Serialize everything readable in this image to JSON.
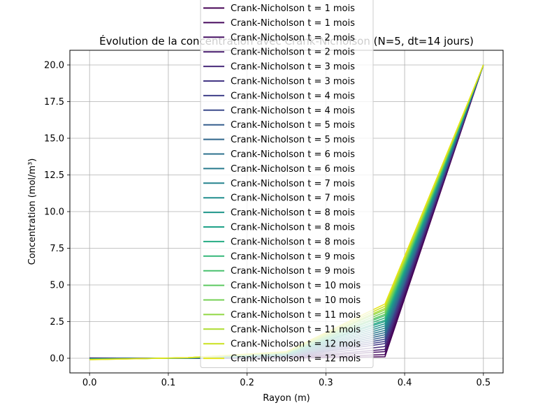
{
  "chart_data": {
    "type": "line",
    "title": "Évolution de la concentration avec Crank-Nicholson (N=5, dt=14 jours)",
    "xlabel": "Rayon (m)",
    "ylabel": "Concentration (mol/m³)",
    "xlim": [
      -0.025,
      0.525
    ],
    "ylim": [
      -1.0,
      21.0
    ],
    "xticks": [
      0.0,
      0.1,
      0.2,
      0.3,
      0.4,
      0.5
    ],
    "yticks": [
      0.0,
      2.5,
      5.0,
      7.5,
      10.0,
      12.5,
      15.0,
      17.5,
      20.0
    ],
    "xtick_labels": [
      "0.0",
      "0.1",
      "0.2",
      "0.3",
      "0.4",
      "0.5"
    ],
    "ytick_labels": [
      "0.0",
      "2.5",
      "5.0",
      "7.5",
      "10.0",
      "12.5",
      "15.0",
      "17.5",
      "20.0"
    ],
    "grid": true,
    "legend_position": "upper center (overlapping title)",
    "colormap": "viridis",
    "x": [
      0.0,
      0.125,
      0.25,
      0.375,
      0.5
    ],
    "series": [
      {
        "name": "Crank-Nicholson t = 1 mois",
        "color": "#440154",
        "values": [
          0.02,
          0.0,
          0.0,
          0.1,
          20.0
        ]
      },
      {
        "name": "Crank-Nicholson t = 1 mois",
        "color": "#46085c",
        "values": [
          0.015,
          0.0,
          0.01,
          0.25,
          20.0
        ]
      },
      {
        "name": "Crank-Nicholson t = 2 mois",
        "color": "#471164",
        "values": [
          0.01,
          0.0,
          0.02,
          0.45,
          20.0
        ]
      },
      {
        "name": "Crank-Nicholson t = 2 mois",
        "color": "#481c6e",
        "values": [
          0.005,
          0.0,
          0.03,
          0.6,
          20.0
        ]
      },
      {
        "name": "Crank-Nicholson t = 3 mois",
        "color": "#472a7a",
        "values": [
          0.0,
          0.0,
          0.05,
          0.8,
          20.0
        ]
      },
      {
        "name": "Crank-Nicholson t = 3 mois",
        "color": "#433584",
        "values": [
          -0.005,
          0.0,
          0.07,
          1.0,
          20.0
        ]
      },
      {
        "name": "Crank-Nicholson t = 4 mois",
        "color": "#3f3f89",
        "values": [
          -0.01,
          0.0,
          0.09,
          1.15,
          20.0
        ]
      },
      {
        "name": "Crank-Nicholson t = 4 mois",
        "color": "#3b4b8c",
        "values": [
          -0.015,
          0.0,
          0.11,
          1.3,
          20.0
        ]
      },
      {
        "name": "Crank-Nicholson t = 5 mois",
        "color": "#355e8d",
        "values": [
          -0.02,
          0.0,
          0.13,
          1.45,
          20.0
        ]
      },
      {
        "name": "Crank-Nicholson t = 5 mois",
        "color": "#31688e",
        "values": [
          -0.025,
          0.0,
          0.15,
          1.6,
          20.0
        ]
      },
      {
        "name": "Crank-Nicholson t = 6 mois",
        "color": "#2d708e",
        "values": [
          -0.03,
          0.01,
          0.17,
          1.75,
          20.0
        ]
      },
      {
        "name": "Crank-Nicholson t = 6 mois",
        "color": "#297a8e",
        "values": [
          -0.035,
          0.01,
          0.19,
          1.9,
          20.0
        ]
      },
      {
        "name": "Crank-Nicholson t = 7 mois",
        "color": "#25838e",
        "values": [
          -0.04,
          0.01,
          0.21,
          2.05,
          20.0
        ]
      },
      {
        "name": "Crank-Nicholson t = 7 mois",
        "color": "#218e8d",
        "values": [
          -0.045,
          0.01,
          0.23,
          2.2,
          20.0
        ]
      },
      {
        "name": "Crank-Nicholson t = 8 mois",
        "color": "#1f968b",
        "values": [
          -0.05,
          0.02,
          0.25,
          2.35,
          20.0
        ]
      },
      {
        "name": "Crank-Nicholson t = 8 mois",
        "color": "#1fa188",
        "values": [
          -0.055,
          0.02,
          0.27,
          2.5,
          20.0
        ]
      },
      {
        "name": "Crank-Nicholson t = 8 mois",
        "color": "#25ab82",
        "values": [
          -0.06,
          0.02,
          0.29,
          2.6,
          20.0
        ]
      },
      {
        "name": "Crank-Nicholson t = 9 mois",
        "color": "#35b779",
        "values": [
          -0.065,
          0.02,
          0.31,
          2.75,
          20.0
        ]
      },
      {
        "name": "Crank-Nicholson t = 9 mois",
        "color": "#48c16e",
        "values": [
          -0.07,
          0.03,
          0.33,
          2.9,
          20.0
        ]
      },
      {
        "name": "Crank-Nicholson t = 10 mois",
        "color": "#5ec962",
        "values": [
          -0.075,
          0.03,
          0.35,
          3.0,
          20.0
        ]
      },
      {
        "name": "Crank-Nicholson t = 10 mois",
        "color": "#75d054",
        "values": [
          -0.08,
          0.03,
          0.37,
          3.15,
          20.0
        ]
      },
      {
        "name": "Crank-Nicholson t = 11 mois",
        "color": "#90d743",
        "values": [
          -0.085,
          0.03,
          0.39,
          3.3,
          20.0
        ]
      },
      {
        "name": "Crank-Nicholson t = 11 mois",
        "color": "#addc30",
        "values": [
          -0.09,
          0.04,
          0.41,
          3.4,
          20.0
        ]
      },
      {
        "name": "Crank-Nicholson t = 12 mois",
        "color": "#cae11f",
        "values": [
          -0.095,
          0.04,
          0.43,
          3.55,
          20.0
        ]
      },
      {
        "name": "Crank-Nicholson t = 12 mois",
        "color": "#e5e419",
        "values": [
          -0.1,
          0.04,
          0.45,
          3.7,
          20.0
        ]
      }
    ]
  }
}
